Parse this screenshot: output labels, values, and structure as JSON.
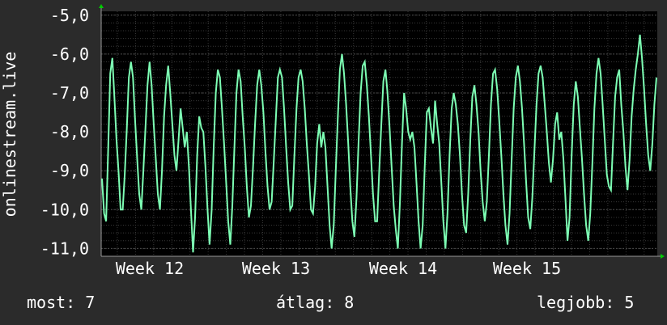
{
  "chart_data": {
    "type": "line",
    "ylabel": "onlinestream.live",
    "yticks": [
      "-5,0",
      "-6,0",
      "-7,0",
      "-8,0",
      "-9,0",
      "-10,0",
      "-11,0"
    ],
    "ytick_values": [
      -5,
      -6,
      -7,
      -8,
      -9,
      -10,
      -11
    ],
    "xticks": [
      "Week 12",
      "Week 13",
      "Week 14",
      "Week 15"
    ],
    "ylim": [
      -11.2,
      -4.9
    ],
    "grid": true,
    "colors": {
      "line": "#7dffb4",
      "plot_bg": "#000000",
      "grid_major": "#4a4a4a",
      "grid_minor": "#383838",
      "axis": "#9a9a9a",
      "arrow": "#00cc00",
      "page_bg": "#2b2b2b"
    },
    "series": [
      {
        "values": [
          -9.2,
          -10.1,
          -10.3,
          -8.4,
          -6.5,
          -6.1,
          -7.1,
          -8.2,
          -9.0,
          -10.0,
          -10.0,
          -9.1,
          -7.9,
          -6.6,
          -6.2,
          -6.6,
          -7.7,
          -8.7,
          -9.6,
          -10.0,
          -9.0,
          -7.9,
          -6.8,
          -6.2,
          -6.8,
          -7.8,
          -8.7,
          -9.6,
          -10.0,
          -9.0,
          -7.6,
          -6.8,
          -6.3,
          -7.0,
          -7.8,
          -8.6,
          -9.0,
          -8.2,
          -7.4,
          -7.9,
          -8.4,
          -8.0,
          -8.9,
          -10.0,
          -11.1,
          -10.2,
          -8.6,
          -7.6,
          -7.9,
          -8.0,
          -8.9,
          -10.0,
          -10.9,
          -10.0,
          -8.4,
          -7.0,
          -6.4,
          -6.6,
          -7.4,
          -8.3,
          -9.3,
          -10.3,
          -10.9,
          -9.9,
          -8.4,
          -7.0,
          -6.4,
          -6.7,
          -7.6,
          -8.4,
          -9.4,
          -10.2,
          -9.9,
          -8.9,
          -7.8,
          -6.8,
          -6.4,
          -6.8,
          -7.5,
          -8.5,
          -9.4,
          -10.0,
          -9.8,
          -8.8,
          -7.7,
          -6.6,
          -6.4,
          -6.6,
          -7.4,
          -8.4,
          -9.3,
          -10.0,
          -9.9,
          -8.6,
          -7.4,
          -6.6,
          -6.4,
          -6.7,
          -7.4,
          -8.3,
          -9.1,
          -10.0,
          -10.1,
          -9.4,
          -8.3,
          -7.8,
          -8.4,
          -8.0,
          -8.4,
          -9.4,
          -10.4,
          -11.0,
          -10.4,
          -9.0,
          -7.6,
          -6.4,
          -6.0,
          -6.5,
          -7.3,
          -8.3,
          -9.4,
          -10.3,
          -10.7,
          -9.7,
          -8.3,
          -7.0,
          -6.3,
          -6.2,
          -6.8,
          -7.6,
          -8.6,
          -9.6,
          -10.3,
          -10.3,
          -9.0,
          -7.8,
          -6.7,
          -6.4,
          -7.0,
          -7.9,
          -8.9,
          -9.9,
          -10.5,
          -11.0,
          -9.8,
          -8.3,
          -7.0,
          -7.4,
          -8.0,
          -8.2,
          -8.0,
          -8.4,
          -9.3,
          -10.3,
          -11.0,
          -10.4,
          -8.9,
          -7.5,
          -7.4,
          -7.9,
          -8.3,
          -7.2,
          -7.8,
          -8.3,
          -9.3,
          -10.3,
          -11.0,
          -10.1,
          -8.6,
          -7.4,
          -7.0,
          -7.3,
          -7.8,
          -8.6,
          -9.6,
          -10.4,
          -10.6,
          -9.6,
          -8.2,
          -7.1,
          -6.8,
          -7.3,
          -8.0,
          -9.0,
          -9.8,
          -10.3,
          -9.8,
          -8.6,
          -7.3,
          -6.5,
          -6.4,
          -6.9,
          -7.7,
          -8.6,
          -9.6,
          -10.4,
          -10.9,
          -10.1,
          -8.7,
          -7.4,
          -6.6,
          -6.3,
          -6.7,
          -7.4,
          -8.3,
          -9.3,
          -10.2,
          -10.5,
          -9.7,
          -8.5,
          -7.3,
          -6.5,
          -6.3,
          -6.6,
          -7.3,
          -8.0,
          -8.8,
          -9.3,
          -8.7,
          -7.8,
          -7.5,
          -8.2,
          -8.0,
          -8.7,
          -9.7,
          -10.8,
          -10.2,
          -8.6,
          -7.3,
          -6.7,
          -7.1,
          -7.9,
          -8.7,
          -9.6,
          -10.4,
          -10.8,
          -10.1,
          -8.8,
          -7.4,
          -6.5,
          -6.1,
          -6.5,
          -7.3,
          -8.2,
          -9.1,
          -9.4,
          -9.5,
          -8.3,
          -7.1,
          -6.6,
          -6.4,
          -7.3,
          -8.0,
          -8.9,
          -9.5,
          -8.7,
          -7.6,
          -6.9,
          -6.4,
          -6.0,
          -5.5,
          -6.1,
          -6.9,
          -7.8,
          -8.6,
          -9.0,
          -8.3,
          -7.3,
          -6.6
        ]
      }
    ]
  },
  "footer": {
    "current_label": "most:",
    "current_value": "7",
    "avg_label": "átlag:",
    "avg_value": "8",
    "best_label": "legjobb:",
    "best_value": "5"
  }
}
